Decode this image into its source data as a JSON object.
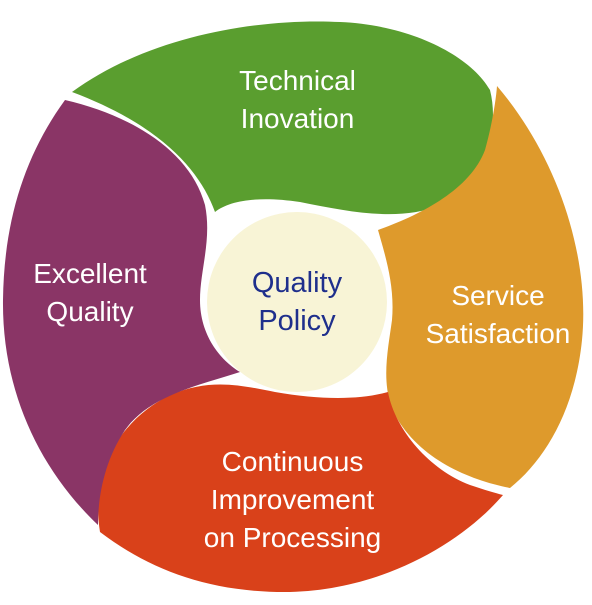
{
  "diagram": {
    "center": {
      "lines": [
        "Quality",
        "Policy"
      ],
      "fill": "#f8f4d6",
      "text_color": "#1f2f8c"
    },
    "segments": [
      {
        "id": "top",
        "lines": [
          "Technical",
          "Inovation"
        ],
        "color": "#5a9e2f"
      },
      {
        "id": "right",
        "lines": [
          "Service",
          "Satisfaction"
        ],
        "color": "#de9a2c"
      },
      {
        "id": "bottom",
        "lines": [
          "Continuous",
          "Improvement",
          "on Processing"
        ],
        "color": "#d9411a"
      },
      {
        "id": "left",
        "lines": [
          "Excellent",
          "Quality"
        ],
        "color": "#8a3566"
      }
    ]
  }
}
